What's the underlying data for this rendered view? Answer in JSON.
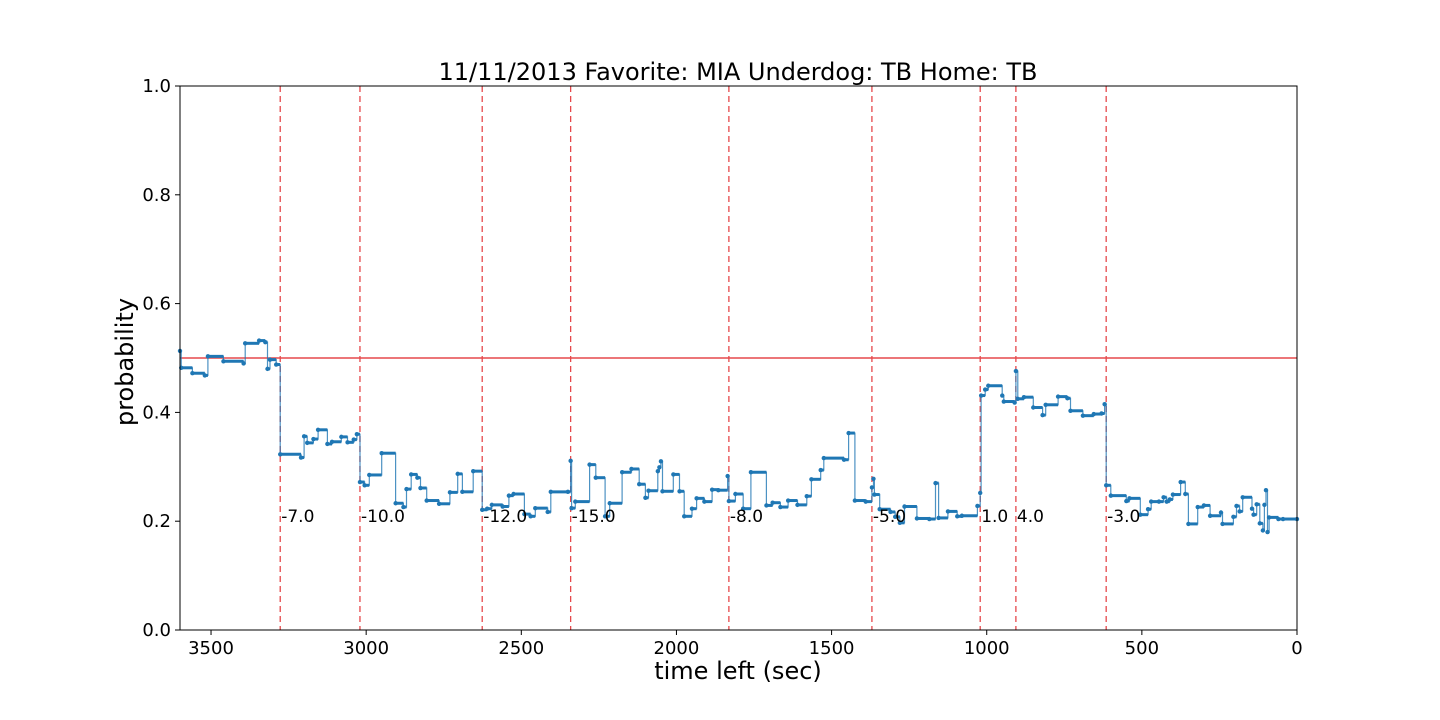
{
  "chart_data": {
    "type": "line",
    "title": "11/11/2013 Favorite: MIA Underdog: TB Home: TB",
    "xlabel": "time left (sec)",
    "ylabel": "probability",
    "xlim": [
      3600,
      0
    ],
    "ylim": [
      0.0,
      1.0
    ],
    "x_ticks": [
      3500,
      3000,
      2500,
      2000,
      1500,
      1000,
      500,
      0
    ],
    "y_ticks": [
      0.0,
      0.2,
      0.4,
      0.6,
      0.8,
      1.0
    ],
    "grid": false,
    "colors": {
      "series": "#1f77b4",
      "reference": "#e6484b",
      "events": "#e6484b"
    },
    "reference_line": {
      "y": 0.5
    },
    "events": [
      {
        "x": 3277,
        "label": "-7.0"
      },
      {
        "x": 3020,
        "label": "-10.0"
      },
      {
        "x": 2626,
        "label": "-12.0"
      },
      {
        "x": 2341,
        "label": "-15.0"
      },
      {
        "x": 1831,
        "label": "-8.0"
      },
      {
        "x": 1370,
        "label": "-5.0"
      },
      {
        "x": 1021,
        "label": "1.0"
      },
      {
        "x": 906,
        "label": "4.0"
      },
      {
        "x": 615,
        "label": "-3.0"
      }
    ],
    "series": [
      {
        "steps": [
          [
            3600,
            0.513
          ],
          [
            3596,
            0.482
          ],
          [
            3560,
            0.472
          ],
          [
            3520,
            0.468
          ],
          [
            3510,
            0.503
          ],
          [
            3460,
            0.494
          ],
          [
            3395,
            0.49
          ],
          [
            3390,
            0.527
          ],
          [
            3345,
            0.532
          ],
          [
            3325,
            0.529
          ],
          [
            3318,
            0.48
          ],
          [
            3310,
            0.497
          ],
          [
            3290,
            0.488
          ],
          [
            3277,
            0.323
          ],
          [
            3210,
            0.317
          ],
          [
            3200,
            0.356
          ],
          [
            3190,
            0.344
          ],
          [
            3170,
            0.351
          ],
          [
            3155,
            0.368
          ],
          [
            3125,
            0.342
          ],
          [
            3110,
            0.346
          ],
          [
            3080,
            0.355
          ],
          [
            3060,
            0.345
          ],
          [
            3040,
            0.35
          ],
          [
            3030,
            0.36
          ],
          [
            3020,
            0.272
          ],
          [
            3005,
            0.266
          ],
          [
            2990,
            0.285
          ],
          [
            2950,
            0.325
          ],
          [
            2905,
            0.233
          ],
          [
            2880,
            0.226
          ],
          [
            2870,
            0.259
          ],
          [
            2855,
            0.286
          ],
          [
            2835,
            0.28
          ],
          [
            2825,
            0.261
          ],
          [
            2805,
            0.238
          ],
          [
            2765,
            0.232
          ],
          [
            2730,
            0.253
          ],
          [
            2705,
            0.287
          ],
          [
            2690,
            0.254
          ],
          [
            2655,
            0.292
          ],
          [
            2626,
            0.221
          ],
          [
            2610,
            0.223
          ],
          [
            2595,
            0.23
          ],
          [
            2560,
            0.227
          ],
          [
            2540,
            0.247
          ],
          [
            2525,
            0.25
          ],
          [
            2490,
            0.213
          ],
          [
            2470,
            0.209
          ],
          [
            2455,
            0.224
          ],
          [
            2415,
            0.217
          ],
          [
            2405,
            0.254
          ],
          [
            2350,
            0.254
          ],
          [
            2341,
            0.311
          ],
          [
            2338,
            0.224
          ],
          [
            2326,
            0.236
          ],
          [
            2280,
            0.304
          ],
          [
            2260,
            0.28
          ],
          [
            2230,
            0.209
          ],
          [
            2215,
            0.233
          ],
          [
            2175,
            0.29
          ],
          [
            2145,
            0.296
          ],
          [
            2120,
            0.268
          ],
          [
            2100,
            0.243
          ],
          [
            2090,
            0.256
          ],
          [
            2060,
            0.292
          ],
          [
            2055,
            0.299
          ],
          [
            2050,
            0.31
          ],
          [
            2045,
            0.255
          ],
          [
            2010,
            0.286
          ],
          [
            1990,
            0.255
          ],
          [
            1975,
            0.209
          ],
          [
            1950,
            0.223
          ],
          [
            1935,
            0.242
          ],
          [
            1910,
            0.236
          ],
          [
            1885,
            0.258
          ],
          [
            1865,
            0.257
          ],
          [
            1835,
            0.283
          ],
          [
            1831,
            0.237
          ],
          [
            1810,
            0.25
          ],
          [
            1785,
            0.223
          ],
          [
            1760,
            0.29
          ],
          [
            1710,
            0.229
          ],
          [
            1690,
            0.234
          ],
          [
            1665,
            0.226
          ],
          [
            1640,
            0.238
          ],
          [
            1610,
            0.23
          ],
          [
            1580,
            0.246
          ],
          [
            1565,
            0.277
          ],
          [
            1535,
            0.294
          ],
          [
            1525,
            0.316
          ],
          [
            1460,
            0.313
          ],
          [
            1445,
            0.362
          ],
          [
            1425,
            0.238
          ],
          [
            1390,
            0.236
          ],
          [
            1370,
            0.262
          ],
          [
            1365,
            0.278
          ],
          [
            1362,
            0.249
          ],
          [
            1345,
            0.222
          ],
          [
            1310,
            0.217
          ],
          [
            1295,
            0.208
          ],
          [
            1280,
            0.197
          ],
          [
            1265,
            0.227
          ],
          [
            1225,
            0.205
          ],
          [
            1185,
            0.204
          ],
          [
            1165,
            0.27
          ],
          [
            1155,
            0.206
          ],
          [
            1125,
            0.218
          ],
          [
            1095,
            0.209
          ],
          [
            1080,
            0.21
          ],
          [
            1030,
            0.228
          ],
          [
            1021,
            0.252
          ],
          [
            1018,
            0.431
          ],
          [
            1005,
            0.442
          ],
          [
            995,
            0.449
          ],
          [
            950,
            0.431
          ],
          [
            945,
            0.42
          ],
          [
            910,
            0.418
          ],
          [
            906,
            0.476
          ],
          [
            900,
            0.425
          ],
          [
            880,
            0.428
          ],
          [
            850,
            0.409
          ],
          [
            820,
            0.395
          ],
          [
            810,
            0.414
          ],
          [
            770,
            0.429
          ],
          [
            740,
            0.426
          ],
          [
            730,
            0.403
          ],
          [
            690,
            0.394
          ],
          [
            655,
            0.397
          ],
          [
            630,
            0.398
          ],
          [
            620,
            0.415
          ],
          [
            615,
            0.266
          ],
          [
            600,
            0.247
          ],
          [
            550,
            0.237
          ],
          [
            540,
            0.242
          ],
          [
            505,
            0.212
          ],
          [
            480,
            0.222
          ],
          [
            470,
            0.236
          ],
          [
            445,
            0.236
          ],
          [
            430,
            0.244
          ],
          [
            420,
            0.236
          ],
          [
            410,
            0.24
          ],
          [
            400,
            0.249
          ],
          [
            375,
            0.272
          ],
          [
            360,
            0.25
          ],
          [
            350,
            0.195
          ],
          [
            320,
            0.226
          ],
          [
            300,
            0.229
          ],
          [
            280,
            0.21
          ],
          [
            245,
            0.216
          ],
          [
            240,
            0.195
          ],
          [
            205,
            0.208
          ],
          [
            195,
            0.228
          ],
          [
            185,
            0.218
          ],
          [
            175,
            0.244
          ],
          [
            145,
            0.223
          ],
          [
            140,
            0.212
          ],
          [
            130,
            0.231
          ],
          [
            120,
            0.196
          ],
          [
            110,
            0.183
          ],
          [
            105,
            0.23
          ],
          [
            100,
            0.257
          ],
          [
            95,
            0.18
          ],
          [
            90,
            0.207
          ],
          [
            60,
            0.204
          ],
          [
            45,
            0.204
          ],
          [
            0,
            0.204
          ]
        ]
      }
    ]
  }
}
